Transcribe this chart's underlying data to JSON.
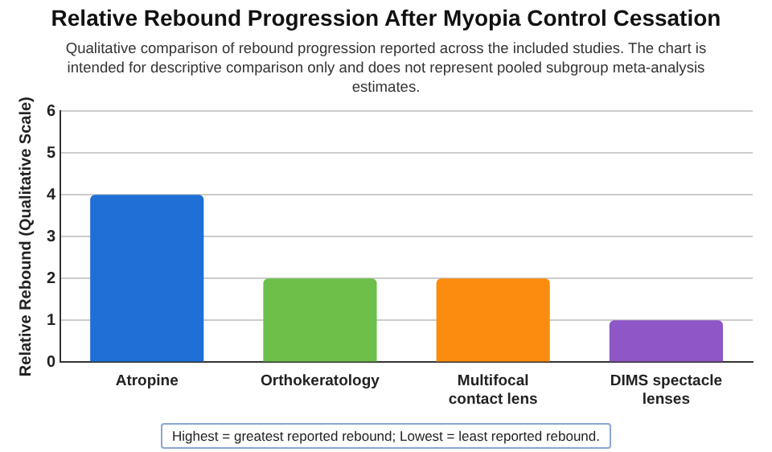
{
  "chart_data": {
    "type": "bar",
    "title": "Relative Rebound Progression After Myopia Control Cessation",
    "subtitle": "Qualitative comparison of rebound progression reported across the included studies. The chart is intended for descriptive comparison only and does not represent pooled subgroup meta-analysis estimates.",
    "ylabel": "Relative Rebound (Qualitative Scale)",
    "categories": [
      "Atropine",
      "Orthokeratology",
      "Multifocal contact lens",
      "DIMS spectacle lenses"
    ],
    "values": [
      4,
      2,
      2,
      1
    ],
    "colors": [
      "#1f6fd6",
      "#6cc04a",
      "#fb8c0f",
      "#8e56c6"
    ],
    "ylim": [
      0,
      6
    ],
    "yticks": [
      0,
      1,
      2,
      3,
      4,
      5,
      6
    ],
    "grid": "y",
    "legend": false,
    "annotations": [
      "Highest = greatest reported rebound; Lowest = least reported rebound."
    ]
  }
}
